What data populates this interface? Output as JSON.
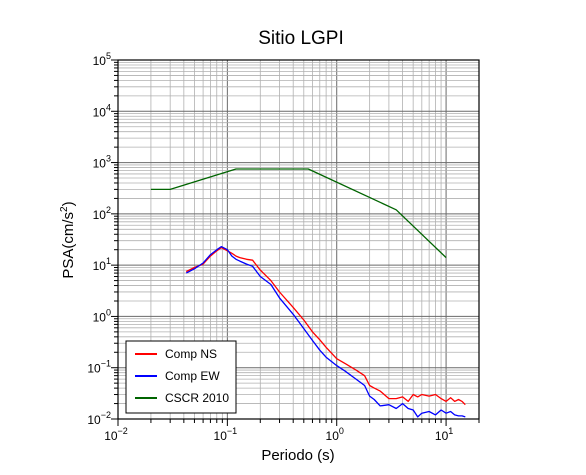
{
  "chart_data": {
    "type": "line",
    "title": "Sitio LGPI",
    "xlabel": "Periodo (s)",
    "ylabel_base": "PSA(cm/s",
    "ylabel_sup": "2",
    "ylabel_tail": ")",
    "x_scale": "log",
    "y_scale": "log",
    "xlim": [
      0.01,
      20
    ],
    "ylim": [
      0.01,
      100000
    ],
    "grid": true,
    "legend_position": "bottom-left",
    "x_ticks": [
      {
        "value": 0.01,
        "base": "10",
        "exp": "−2"
      },
      {
        "value": 0.1,
        "base": "10",
        "exp": "−1"
      },
      {
        "value": 1,
        "base": "10",
        "exp": "0"
      },
      {
        "value": 10,
        "base": "10",
        "exp": "1"
      }
    ],
    "y_ticks": [
      {
        "value": 0.01,
        "base": "10",
        "exp": "−2"
      },
      {
        "value": 0.1,
        "base": "10",
        "exp": "−1"
      },
      {
        "value": 1,
        "base": "10",
        "exp": "0"
      },
      {
        "value": 10,
        "base": "10",
        "exp": "1"
      },
      {
        "value": 100,
        "base": "10",
        "exp": "2"
      },
      {
        "value": 1000,
        "base": "10",
        "exp": "3"
      },
      {
        "value": 10000,
        "base": "10",
        "exp": "4"
      },
      {
        "value": 100000,
        "base": "10",
        "exp": "5"
      }
    ],
    "series": [
      {
        "name": "Comp NS",
        "color": "#ff0000",
        "x": [
          0.042,
          0.05,
          0.06,
          0.07,
          0.08,
          0.088,
          0.1,
          0.11,
          0.12,
          0.13,
          0.15,
          0.17,
          0.2,
          0.25,
          0.3,
          0.4,
          0.5,
          0.6,
          0.7,
          0.8,
          1.0,
          1.2,
          1.5,
          1.8,
          2.0,
          2.2,
          2.5,
          3.0,
          3.5,
          4.0,
          4.5,
          5.0,
          5.5,
          6.0,
          7.0,
          8.0,
          9.0,
          10.0,
          11.0,
          12.0,
          13.0,
          14.0,
          15.0
        ],
        "y": [
          7.5,
          9.0,
          10.5,
          15.0,
          19.0,
          22.0,
          19.0,
          17.0,
          15.0,
          14.0,
          13.0,
          12.5,
          8.0,
          5.0,
          3.0,
          1.5,
          0.85,
          0.5,
          0.35,
          0.25,
          0.15,
          0.12,
          0.09,
          0.07,
          0.045,
          0.04,
          0.035,
          0.025,
          0.025,
          0.027,
          0.022,
          0.03,
          0.027,
          0.03,
          0.028,
          0.03,
          0.025,
          0.022,
          0.026,
          0.022,
          0.024,
          0.022,
          0.019
        ]
      },
      {
        "name": "Comp EW",
        "color": "#0000ff",
        "x": [
          0.042,
          0.05,
          0.06,
          0.07,
          0.08,
          0.088,
          0.1,
          0.11,
          0.12,
          0.13,
          0.15,
          0.17,
          0.2,
          0.25,
          0.3,
          0.4,
          0.5,
          0.6,
          0.7,
          0.8,
          1.0,
          1.2,
          1.5,
          1.8,
          2.0,
          2.2,
          2.5,
          3.0,
          3.5,
          4.0,
          4.5,
          5.0,
          5.5,
          6.0,
          7.0,
          8.0,
          9.0,
          10.0,
          11.0,
          12.0,
          13.0,
          14.0,
          15.0
        ],
        "y": [
          7.0,
          8.5,
          11.0,
          16.0,
          20.0,
          23.0,
          20.0,
          15.0,
          13.0,
          12.0,
          10.5,
          9.5,
          6.0,
          4.2,
          2.3,
          1.1,
          0.58,
          0.34,
          0.22,
          0.16,
          0.11,
          0.085,
          0.06,
          0.045,
          0.028,
          0.024,
          0.018,
          0.019,
          0.016,
          0.02,
          0.016,
          0.015,
          0.011,
          0.013,
          0.014,
          0.012,
          0.015,
          0.013,
          0.014,
          0.012,
          0.0115,
          0.0115,
          0.011
        ]
      },
      {
        "name": "CSCR 2010",
        "color": "#006400",
        "x": [
          0.02,
          0.03,
          0.12,
          0.55,
          3.5,
          10.0
        ],
        "y": [
          300,
          300,
          750,
          750,
          120,
          14
        ]
      }
    ]
  }
}
